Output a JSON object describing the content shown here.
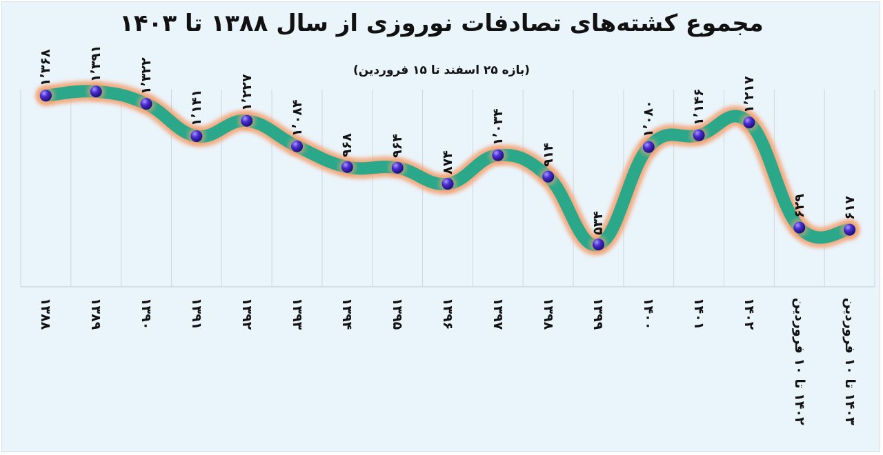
{
  "title": "مجموع کشته‌های تصادفات نوروزی از سال ۱۳۸۸ تا ۱۴۰۳",
  "subtitle": "(بازه ۲۵ اسفند تا ۱۵ فروردین)",
  "colors": {
    "background": "#eaf4fb",
    "line": "#2ba88a",
    "glow": "#f4a070",
    "marker": "#4a2bd0",
    "grid": "#d0d6dc",
    "text": "#111111"
  },
  "x_labels": [
    "۱۳۸۸",
    "۱۳۸۹",
    "۱۳۹۰",
    "۱۳۹۱",
    "۱۳۹۲",
    "۱۳۹۳",
    "۱۳۹۴",
    "۱۳۹۵",
    "۱۳۹۶",
    "۱۳۹۷",
    "۱۳۹۸",
    "۱۳۹۹",
    "۱۴۰۰",
    "۱۴۰۱",
    "۱۴۰۲",
    "۱۴۰۲ تا ۱۰ فروردین",
    "۱۴۰۳ تا ۱۰ فروردین"
  ],
  "data_labels": [
    "۱٬۳۶۸",
    "۱٬۳۹۱",
    "۱٬۳۲۲",
    "۱٬۱۴۱",
    "۱٬۲۲۷",
    "۱٬۰۸۴",
    "۹۶۸",
    "۹۶۴",
    "۸۷۴",
    "۱٬۰۳۴",
    "۹۱۴",
    "۵۳۴",
    "۱٬۰۸۰",
    "۱٬۱۴۶",
    "۱٬۲۱۷",
    "۶۲۹",
    "۶۱۷"
  ],
  "chart_data": {
    "type": "line",
    "title": "مجموع کشته‌های تصادفات نوروزی از سال ۱۳۸۸ تا ۱۴۰۳",
    "subtitle": "(بازه ۲۵ اسفند تا ۱۵ فروردین)",
    "categories": [
      "1388",
      "1389",
      "1390",
      "1391",
      "1392",
      "1393",
      "1394",
      "1395",
      "1396",
      "1397",
      "1398",
      "1399",
      "1400",
      "1401",
      "1402",
      "1402 تا 10 فروردین",
      "1403 تا 10 فروردین"
    ],
    "series": [
      {
        "name": "مجموع کشته‌ها",
        "values": [
          1368,
          1391,
          1322,
          1141,
          1227,
          1084,
          968,
          964,
          874,
          1034,
          914,
          534,
          1080,
          1146,
          1217,
          629,
          617
        ]
      }
    ],
    "xlabel": "",
    "ylabel": "",
    "y_axis_visible": false,
    "grid": "vertical",
    "smooth": true,
    "data_labels": true,
    "legend": "none"
  }
}
